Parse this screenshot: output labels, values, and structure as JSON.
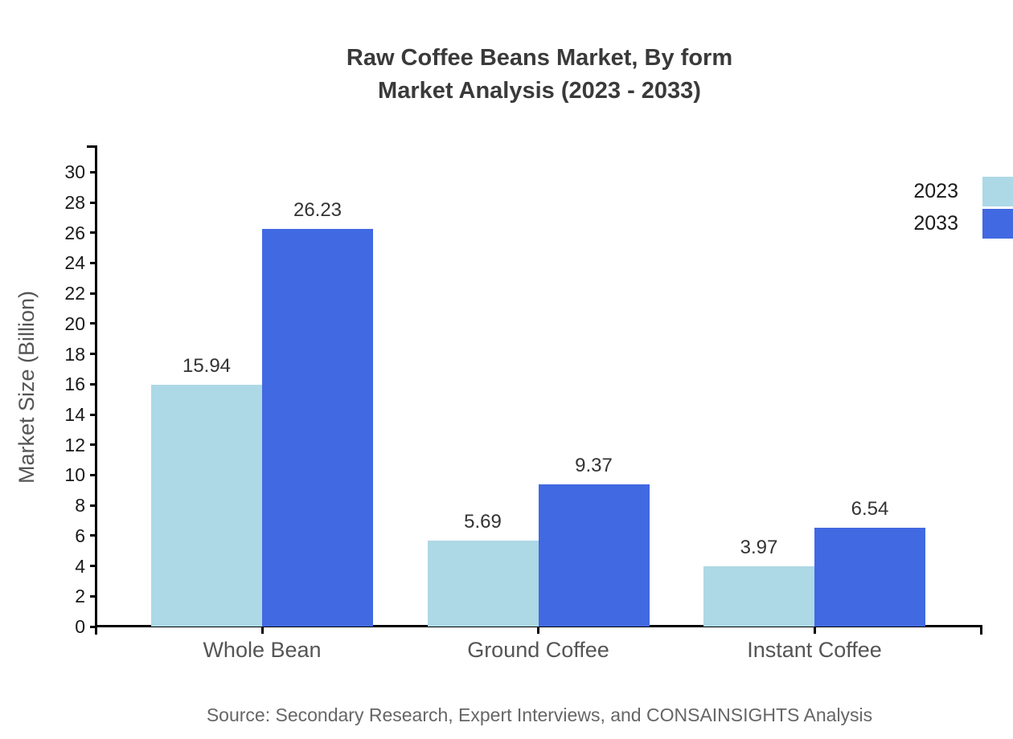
{
  "title": {
    "line1": "Raw Coffee Beans Market, By form",
    "line2": "Market Analysis (2023 - 2033)"
  },
  "source": "Source: Secondary Research, Expert Interviews, and CONSAINSIGHTS Analysis",
  "chart_data": {
    "type": "bar",
    "title": "Raw Coffee Beans Market, By form — Market Analysis (2023 - 2033)",
    "categories": [
      "Whole Bean",
      "Ground Coffee",
      "Instant Coffee"
    ],
    "series": [
      {
        "name": "2023",
        "color": "#ADD8E6",
        "values": [
          15.94,
          5.69,
          3.97
        ]
      },
      {
        "name": "2033",
        "color": "#4169E1",
        "values": [
          26.23,
          9.37,
          6.54
        ]
      }
    ],
    "xlabel": "",
    "ylabel": "Market Size (Billion)",
    "ylim": [
      0,
      30
    ],
    "yticks": [
      0,
      2,
      4,
      6,
      8,
      10,
      12,
      14,
      16,
      18,
      20,
      22,
      24,
      26,
      28,
      30
    ],
    "grid": false,
    "legend_position": "top-right",
    "value_labels": true
  }
}
